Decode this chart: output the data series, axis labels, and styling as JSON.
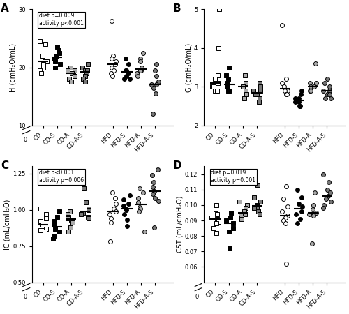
{
  "panel_A": {
    "label": "A",
    "ylabel": "H (cmH₂O/mL)",
    "ylim_main": [
      10,
      30
    ],
    "ylim_full": [
      0,
      30
    ],
    "yticks": [
      10,
      20,
      30
    ],
    "y0_break": true,
    "annotation": "diet p=0.009\nactivity p<0.001",
    "groups": {
      "CD": {
        "values": [
          24.5,
          24.0,
          22.0,
          21.0,
          21.0,
          20.5,
          20.0,
          19.5,
          19.0
        ],
        "shape": "s",
        "fcolor": "white",
        "ecolor": "black"
      },
      "CD-S": {
        "values": [
          23.5,
          23.0,
          22.5,
          22.0,
          21.5,
          21.0,
          20.5,
          20.0
        ],
        "shape": "s",
        "fcolor": "black",
        "ecolor": "black"
      },
      "CD-A": {
        "values": [
          20.0,
          19.5,
          19.5,
          19.0,
          18.5,
          18.0,
          17.5
        ],
        "shape": "s",
        "fcolor": "#aaaaaa",
        "ecolor": "black"
      },
      "CD-A-S": {
        "values": [
          20.5,
          20.0,
          19.5,
          19.5,
          19.0,
          18.5,
          18.0,
          17.5
        ],
        "shape": "s",
        "fcolor": "#777777",
        "ecolor": "black"
      },
      "HFD": {
        "values": [
          28.0,
          22.0,
          21.5,
          21.0,
          20.5,
          20.0,
          19.5,
          19.0,
          18.5
        ],
        "shape": "o",
        "fcolor": "white",
        "ecolor": "black"
      },
      "HFD-S": {
        "values": [
          21.5,
          20.5,
          19.5,
          19.5,
          19.0,
          18.5,
          18.0,
          18.0
        ],
        "shape": "o",
        "fcolor": "black",
        "ecolor": "black"
      },
      "HFD-A": {
        "values": [
          22.5,
          21.5,
          21.0,
          20.0,
          19.5,
          19.5,
          19.0,
          18.5
        ],
        "shape": "o",
        "fcolor": "#aaaaaa",
        "ecolor": "black"
      },
      "HFD-A-S": {
        "values": [
          20.5,
          19.5,
          18.5,
          17.5,
          17.0,
          17.0,
          16.5,
          15.5,
          12.0
        ],
        "shape": "o",
        "fcolor": "#777777",
        "ecolor": "black"
      }
    }
  },
  "panel_B": {
    "label": "B",
    "ylabel": "G (cmH₂O/mL)",
    "ylim_main": [
      2.0,
      5.0
    ],
    "ylim_full": [
      0,
      5
    ],
    "yticks": [
      2,
      3,
      4,
      5
    ],
    "y0_break": false,
    "annotation": null,
    "groups": {
      "CD": {
        "values": [
          5.0,
          4.0,
          3.3,
          3.2,
          3.1,
          3.0,
          3.0,
          2.9,
          2.9
        ],
        "shape": "s",
        "fcolor": "white",
        "ecolor": "black"
      },
      "CD-S": {
        "values": [
          3.5,
          3.3,
          3.2,
          3.1,
          3.0,
          3.0,
          2.9,
          2.9
        ],
        "shape": "s",
        "fcolor": "black",
        "ecolor": "black"
      },
      "CD-A": {
        "values": [
          3.3,
          3.1,
          3.0,
          3.0,
          2.9,
          2.8,
          2.7
        ],
        "shape": "s",
        "fcolor": "#aaaaaa",
        "ecolor": "black"
      },
      "CD-A-S": {
        "values": [
          3.1,
          3.0,
          2.9,
          2.9,
          2.8,
          2.8,
          2.7,
          2.6
        ],
        "shape": "s",
        "fcolor": "#777777",
        "ecolor": "black"
      },
      "HFD": {
        "values": [
          4.6,
          3.2,
          3.1,
          3.0,
          2.9,
          2.9,
          2.8,
          2.8
        ],
        "shape": "o",
        "fcolor": "white",
        "ecolor": "black"
      },
      "HFD-S": {
        "values": [
          2.9,
          2.8,
          2.7,
          2.7,
          2.6,
          2.6,
          2.5,
          2.5
        ],
        "shape": "o",
        "fcolor": "black",
        "ecolor": "black"
      },
      "HFD-A": {
        "values": [
          3.6,
          3.1,
          3.1,
          3.0,
          3.0,
          2.9,
          2.9
        ],
        "shape": "o",
        "fcolor": "#aaaaaa",
        "ecolor": "black"
      },
      "HFD-A-S": {
        "values": [
          3.2,
          3.1,
          3.0,
          2.9,
          2.9,
          2.8,
          2.8,
          2.7,
          2.7
        ],
        "shape": "o",
        "fcolor": "#777777",
        "ecolor": "black"
      }
    }
  },
  "panel_C": {
    "label": "C",
    "ylabel": "IC (mL/cmH₂O)",
    "ylim_main": [
      0.5,
      1.3
    ],
    "ylim_full": [
      0,
      1.3
    ],
    "yticks": [
      0.5,
      0.75,
      1.0,
      1.25
    ],
    "y0_break": true,
    "annotation": "diet p<0.001\nactivity p=0.006",
    "groups": {
      "CD": {
        "values": [
          1.01,
          0.97,
          0.94,
          0.92,
          0.9,
          0.89,
          0.87,
          0.86,
          0.85
        ],
        "shape": "s",
        "fcolor": "white",
        "ecolor": "black"
      },
      "CD-S": {
        "values": [
          0.99,
          0.95,
          0.92,
          0.9,
          0.87,
          0.85,
          0.82,
          0.8
        ],
        "shape": "s",
        "fcolor": "black",
        "ecolor": "black"
      },
      "CD-A": {
        "values": [
          0.99,
          0.97,
          0.95,
          0.94,
          0.93,
          0.91,
          0.88,
          0.85
        ],
        "shape": "s",
        "fcolor": "#aaaaaa",
        "ecolor": "black"
      },
      "CD-A-S": {
        "values": [
          1.15,
          1.05,
          1.01,
          1.0,
          0.98,
          0.97,
          0.95,
          0.94
        ],
        "shape": "s",
        "fcolor": "#777777",
        "ecolor": "black"
      },
      "HFD": {
        "values": [
          1.12,
          1.08,
          1.04,
          1.01,
          0.99,
          0.97,
          0.94,
          0.91,
          0.78
        ],
        "shape": "o",
        "fcolor": "white",
        "ecolor": "black"
      },
      "HFD-S": {
        "values": [
          1.1,
          1.07,
          1.04,
          1.03,
          1.01,
          1.0,
          0.97,
          0.93,
          0.89
        ],
        "shape": "o",
        "fcolor": "black",
        "ecolor": "black"
      },
      "HFD-A": {
        "values": [
          1.15,
          1.12,
          1.08,
          1.05,
          1.02,
          1.01,
          0.99,
          0.85
        ],
        "shape": "o",
        "fcolor": "#aaaaaa",
        "ecolor": "black"
      },
      "HFD-A-S": {
        "values": [
          1.28,
          1.24,
          1.19,
          1.16,
          1.13,
          1.11,
          1.08,
          1.06,
          0.88
        ],
        "shape": "o",
        "fcolor": "#777777",
        "ecolor": "black"
      }
    }
  },
  "panel_D": {
    "label": "D",
    "ylabel": "CST (mL/cmH₂O)",
    "ylim_main": [
      0.05,
      0.125
    ],
    "ylim_full": [
      0,
      0.125
    ],
    "yticks": [
      0.06,
      0.07,
      0.08,
      0.09,
      0.1,
      0.11,
      0.12
    ],
    "y0_break": true,
    "annotation": "diet p=0.019\nactivity p=0.001",
    "groups": {
      "CD": {
        "values": [
          0.1,
          0.097,
          0.094,
          0.092,
          0.091,
          0.089,
          0.088,
          0.085,
          0.082
        ],
        "shape": "s",
        "fcolor": "white",
        "ecolor": "black"
      },
      "CD-S": {
        "values": [
          0.095,
          0.092,
          0.09,
          0.088,
          0.085,
          0.083,
          0.072
        ],
        "shape": "s",
        "fcolor": "black",
        "ecolor": "black"
      },
      "CD-A": {
        "values": [
          0.102,
          0.1,
          0.098,
          0.096,
          0.094,
          0.093,
          0.092,
          0.091
        ],
        "shape": "s",
        "fcolor": "#aaaaaa",
        "ecolor": "black"
      },
      "CD-A-S": {
        "values": [
          0.113,
          0.105,
          0.102,
          0.1,
          0.099,
          0.098,
          0.096,
          0.094
        ],
        "shape": "s",
        "fcolor": "#777777",
        "ecolor": "black"
      },
      "HFD": {
        "values": [
          0.112,
          0.104,
          0.099,
          0.096,
          0.093,
          0.092,
          0.09,
          0.088,
          0.062
        ],
        "shape": "o",
        "fcolor": "white",
        "ecolor": "black"
      },
      "HFD-S": {
        "values": [
          0.11,
          0.105,
          0.101,
          0.099,
          0.096,
          0.094,
          0.091,
          0.088
        ],
        "shape": "o",
        "fcolor": "black",
        "ecolor": "black"
      },
      "HFD-A": {
        "values": [
          0.108,
          0.1,
          0.097,
          0.095,
          0.094,
          0.093,
          0.075
        ],
        "shape": "o",
        "fcolor": "#aaaaaa",
        "ecolor": "black"
      },
      "HFD-A-S": {
        "values": [
          0.12,
          0.115,
          0.11,
          0.108,
          0.106,
          0.104,
          0.102,
          0.1,
          0.098
        ],
        "shape": "o",
        "fcolor": "#777777",
        "ecolor": "black"
      }
    }
  },
  "group_names": [
    "CD",
    "CD-S",
    "CD-A",
    "CD-A-S",
    "HFD",
    "HFD-S",
    "HFD-A",
    "HFD-A-S"
  ],
  "x_positions": [
    1,
    2,
    3,
    4,
    6,
    7,
    8,
    9
  ]
}
